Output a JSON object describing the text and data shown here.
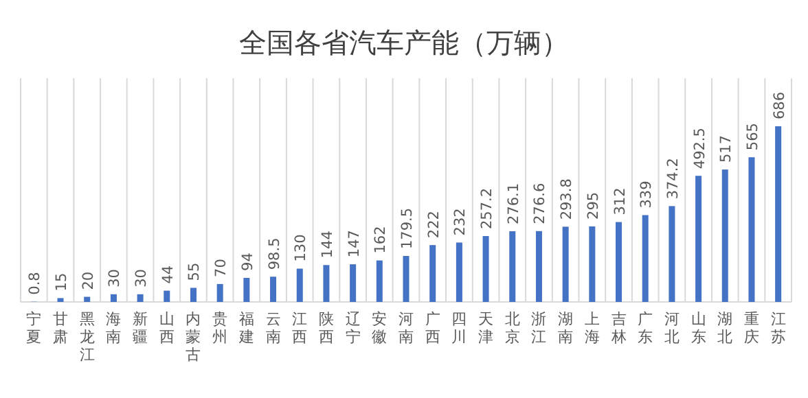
{
  "chart_data": {
    "type": "bar",
    "title": "全国各省汽车产能（万辆）",
    "categories": [
      "宁夏",
      "甘肃",
      "黑龙江",
      "海南",
      "新疆",
      "山西",
      "内蒙古",
      "贵州",
      "福建",
      "云南",
      "江西",
      "陕西",
      "辽宁",
      "安徽",
      "河南",
      "广西",
      "四川",
      "天津",
      "北京",
      "浙江",
      "湖南",
      "上海",
      "吉林",
      "广东",
      "河北",
      "山东",
      "湖北",
      "重庆",
      "江苏"
    ],
    "values": [
      0.8,
      15,
      20,
      30,
      30,
      44,
      55,
      70,
      94,
      98.5,
      130,
      144,
      147,
      162,
      179.5,
      222,
      232,
      257.2,
      276.1,
      276.6,
      293.8,
      295,
      312,
      339,
      374.2,
      492.5,
      517,
      565,
      686
    ],
    "color": "#4472c4",
    "data_labels": true,
    "grid": "x"
  }
}
